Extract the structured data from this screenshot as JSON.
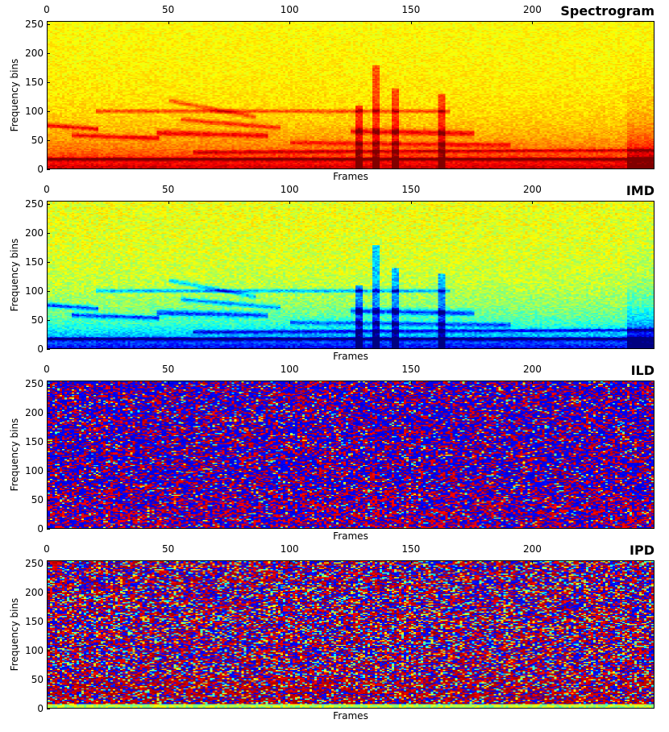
{
  "chart_data": [
    {
      "type": "heatmap",
      "title": "Spectrogram",
      "xlabel": "Frames",
      "ylabel": "Frequency bins",
      "xlim": [
        0,
        250
      ],
      "ylim": [
        0,
        256
      ],
      "xticks": [
        "0",
        "50",
        "100",
        "150",
        "200"
      ],
      "yticks": [
        "0",
        "50",
        "100",
        "150",
        "200",
        "250"
      ],
      "colormap": "jet",
      "pattern": "spectrogram"
    },
    {
      "type": "heatmap",
      "title": "IMD",
      "xlabel": "Frames",
      "ylabel": "Frequency bins",
      "xlim": [
        0,
        250
      ],
      "ylim": [
        0,
        256
      ],
      "xticks": [
        "0",
        "50",
        "100",
        "150",
        "200"
      ],
      "yticks": [
        "0",
        "50",
        "100",
        "150",
        "200",
        "250"
      ],
      "colormap": "jet",
      "pattern": "imd"
    },
    {
      "type": "heatmap",
      "title": "ILD",
      "xlabel": "Frames",
      "ylabel": "Frequency bins",
      "xlim": [
        0,
        250
      ],
      "ylim": [
        0,
        256
      ],
      "xticks": [
        "0",
        "50",
        "100",
        "150",
        "200"
      ],
      "yticks": [
        "0",
        "50",
        "100",
        "150",
        "200",
        "250"
      ],
      "colormap": "jet",
      "pattern": "ild"
    },
    {
      "type": "heatmap",
      "title": "IPD",
      "xlabel": "Frames",
      "ylabel": "Frequency bins",
      "xlim": [
        0,
        250
      ],
      "ylim": [
        0,
        256
      ],
      "xticks": [
        "0",
        "50",
        "100",
        "150",
        "200"
      ],
      "yticks": [
        "0",
        "50",
        "100",
        "150",
        "200",
        "250"
      ],
      "colormap": "jet",
      "pattern": "ipd"
    }
  ]
}
